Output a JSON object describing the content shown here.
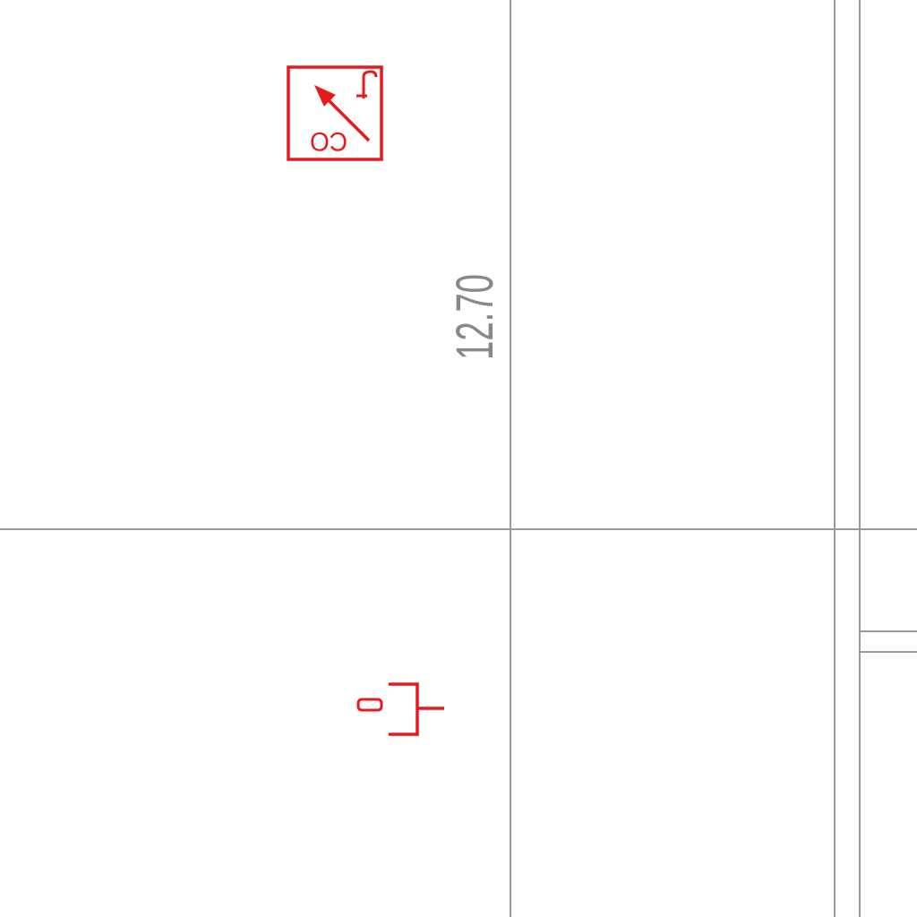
{
  "drawing": {
    "dimension_label": "12.70",
    "detector_label": "CO",
    "colors": {
      "background": "#ffffff",
      "wall_lines": "#9a9a9a",
      "dimension_text": "#888888",
      "symbol": "#e8191c"
    },
    "symbols": {
      "detector": "carbon-monoxide-detector-icon",
      "outlet": "outlet-icon"
    }
  }
}
